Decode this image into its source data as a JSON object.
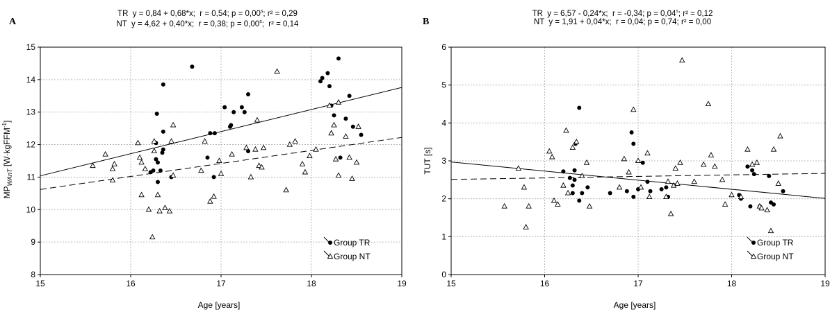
{
  "chart_data": [
    {
      "type": "scatter",
      "panel_letter": "A",
      "annotation_tr": "TR  y = 0,84 + 0,68*x;  r = 0,54; p = 0,00",
      "annotation_tr_sup": "s",
      "annotation_tr_tail": "; r² = 0,29",
      "annotation_nt": "NT  y = 4,62 + 0,40*x;  r = 0,38; p = 0,00",
      "annotation_nt_sup": "s",
      "annotation_nt_tail": ";  r² = 0,14",
      "ylabel": "MP",
      "ylabel_sub": "WAnT",
      "ylabel_tail": " [W·kgFFM",
      "ylabel_sup": "-1",
      "ylabel_close": "]",
      "xlabel": "Age [years]",
      "xlim": [
        15,
        19
      ],
      "ylim": [
        8,
        15
      ],
      "xticks": [
        15,
        16,
        17,
        18,
        19
      ],
      "yticks": [
        8,
        9,
        10,
        11,
        12,
        13,
        14,
        15
      ],
      "grid": true,
      "legend_position": "bottom-right",
      "series": [
        {
          "name": "Group TR",
          "marker": "filled-circle",
          "line_style": "solid",
          "fit": {
            "intercept": 0.84,
            "slope": 0.68
          },
          "points": [
            [
              16.22,
              11.15
            ],
            [
              16.25,
              11.2
            ],
            [
              16.28,
              12.05
            ],
            [
              16.28,
              11.55
            ],
            [
              16.29,
              12.95
            ],
            [
              16.3,
              11.45
            ],
            [
              16.3,
              10.85
            ],
            [
              16.33,
              11.2
            ],
            [
              16.35,
              11.75
            ],
            [
              16.36,
              11.85
            ],
            [
              16.36,
              12.4
            ],
            [
              16.36,
              13.85
            ],
            [
              16.45,
              11.0
            ],
            [
              16.68,
              14.4
            ],
            [
              16.85,
              11.6
            ],
            [
              16.88,
              12.35
            ],
            [
              16.92,
              11.0
            ],
            [
              16.93,
              12.35
            ],
            [
              17.04,
              13.15
            ],
            [
              17.1,
              12.55
            ],
            [
              17.11,
              12.6
            ],
            [
              17.14,
              13.0
            ],
            [
              17.23,
              13.15
            ],
            [
              17.26,
              13.0
            ],
            [
              17.3,
              13.55
            ],
            [
              17.3,
              11.8
            ],
            [
              18.1,
              13.95
            ],
            [
              18.12,
              14.05
            ],
            [
              18.18,
              14.2
            ],
            [
              18.2,
              13.8
            ],
            [
              18.22,
              13.2
            ],
            [
              18.25,
              12.9
            ],
            [
              18.3,
              14.65
            ],
            [
              18.32,
              11.6
            ],
            [
              18.38,
              12.8
            ],
            [
              18.42,
              13.5
            ],
            [
              18.46,
              12.55
            ],
            [
              18.55,
              12.3
            ]
          ]
        },
        {
          "name": "Group NT",
          "marker": "open-triangle",
          "line_style": "dashed",
          "fit": {
            "intercept": 4.62,
            "slope": 0.4
          },
          "points": [
            [
              15.58,
              11.35
            ],
            [
              15.72,
              11.7
            ],
            [
              15.8,
              11.25
            ],
            [
              15.82,
              11.4
            ],
            [
              15.8,
              10.9
            ],
            [
              16.08,
              12.05
            ],
            [
              16.1,
              11.6
            ],
            [
              16.12,
              11.45
            ],
            [
              16.16,
              11.25
            ],
            [
              16.12,
              10.45
            ],
            [
              16.2,
              10.0
            ],
            [
              16.24,
              9.15
            ],
            [
              16.26,
              12.1
            ],
            [
              16.26,
              11.8
            ],
            [
              16.3,
              10.45
            ],
            [
              16.32,
              9.95
            ],
            [
              16.38,
              10.05
            ],
            [
              16.43,
              9.95
            ],
            [
              16.47,
              11.05
            ],
            [
              16.47,
              12.6
            ],
            [
              16.45,
              12.1
            ],
            [
              16.78,
              11.2
            ],
            [
              16.82,
              12.1
            ],
            [
              16.88,
              10.25
            ],
            [
              16.92,
              10.4
            ],
            [
              16.98,
              11.5
            ],
            [
              17.0,
              11.1
            ],
            [
              17.12,
              11.7
            ],
            [
              17.28,
              11.9
            ],
            [
              17.33,
              11.0
            ],
            [
              17.38,
              11.85
            ],
            [
              17.4,
              12.75
            ],
            [
              17.42,
              11.35
            ],
            [
              17.45,
              11.3
            ],
            [
              17.47,
              11.9
            ],
            [
              17.62,
              14.25
            ],
            [
              17.72,
              10.6
            ],
            [
              17.76,
              12.0
            ],
            [
              17.82,
              12.1
            ],
            [
              17.9,
              11.4
            ],
            [
              17.93,
              11.15
            ],
            [
              17.98,
              11.65
            ],
            [
              18.05,
              11.85
            ],
            [
              18.2,
              13.2
            ],
            [
              18.22,
              12.35
            ],
            [
              18.25,
              12.6
            ],
            [
              18.27,
              11.55
            ],
            [
              18.3,
              13.3
            ],
            [
              18.3,
              11.05
            ],
            [
              18.38,
              12.25
            ],
            [
              18.42,
              11.6
            ],
            [
              18.45,
              10.95
            ],
            [
              18.5,
              11.45
            ],
            [
              18.52,
              12.55
            ]
          ]
        }
      ]
    },
    {
      "type": "scatter",
      "panel_letter": "B",
      "annotation_tr": "TR  y = 6,57 - 0,24*x;  r = -0,34; p = 0,04",
      "annotation_tr_sup": "s",
      "annotation_tr_tail": "; r² = 0,12",
      "annotation_nt": "NT  y = 1,91 + 0,04*x;  r = 0,04; p = 0,74; r² = 0,00",
      "annotation_nt_sup": "",
      "annotation_nt_tail": "",
      "ylabel": "TUT [s]",
      "xlabel": "Age [years]",
      "xlim": [
        15,
        19
      ],
      "ylim": [
        0,
        6
      ],
      "xticks": [
        15,
        16,
        17,
        18,
        19
      ],
      "yticks": [
        0,
        1,
        2,
        3,
        4,
        5,
        6
      ],
      "grid": true,
      "legend_position": "bottom-right",
      "series": [
        {
          "name": "Group TR",
          "marker": "filled-circle",
          "line_style": "solid",
          "fit": {
            "intercept": 6.57,
            "slope": -0.24
          },
          "points": [
            [
              16.2,
              2.72
            ],
            [
              16.27,
              2.55
            ],
            [
              16.3,
              2.35
            ],
            [
              16.3,
              2.15
            ],
            [
              16.32,
              2.5
            ],
            [
              16.32,
              2.75
            ],
            [
              16.33,
              3.45
            ],
            [
              16.37,
              4.4
            ],
            [
              16.37,
              1.95
            ],
            [
              16.4,
              2.15
            ],
            [
              16.46,
              2.3
            ],
            [
              16.7,
              2.15
            ],
            [
              16.88,
              2.2
            ],
            [
              16.93,
              3.75
            ],
            [
              16.95,
              3.45
            ],
            [
              16.95,
              2.05
            ],
            [
              17.0,
              2.25
            ],
            [
              17.05,
              2.95
            ],
            [
              17.1,
              2.45
            ],
            [
              17.13,
              2.2
            ],
            [
              17.25,
              2.25
            ],
            [
              17.3,
              2.3
            ],
            [
              17.32,
              2.05
            ],
            [
              18.08,
              2.1
            ],
            [
              18.1,
              2.0
            ],
            [
              18.17,
              2.85
            ],
            [
              18.2,
              1.8
            ],
            [
              18.22,
              2.75
            ],
            [
              18.24,
              2.65
            ],
            [
              18.3,
              1.8
            ],
            [
              18.4,
              2.6
            ],
            [
              18.42,
              1.9
            ],
            [
              18.45,
              1.85
            ],
            [
              18.55,
              2.2
            ]
          ]
        },
        {
          "name": "Group NT",
          "marker": "open-triangle",
          "line_style": "dashed",
          "fit": {
            "intercept": 1.91,
            "slope": 0.04
          },
          "points": [
            [
              15.57,
              1.8
            ],
            [
              15.72,
              2.8
            ],
            [
              15.78,
              2.3
            ],
            [
              15.8,
              1.25
            ],
            [
              15.83,
              1.8
            ],
            [
              16.05,
              3.25
            ],
            [
              16.08,
              3.1
            ],
            [
              16.1,
              1.95
            ],
            [
              16.14,
              1.85
            ],
            [
              16.2,
              2.35
            ],
            [
              16.23,
              3.8
            ],
            [
              16.25,
              2.15
            ],
            [
              16.3,
              3.35
            ],
            [
              16.34,
              3.5
            ],
            [
              16.4,
              2.6
            ],
            [
              16.45,
              2.95
            ],
            [
              16.48,
              1.8
            ],
            [
              16.8,
              2.3
            ],
            [
              16.85,
              3.05
            ],
            [
              16.9,
              2.7
            ],
            [
              16.95,
              4.35
            ],
            [
              17.0,
              3.0
            ],
            [
              17.03,
              2.3
            ],
            [
              17.1,
              3.2
            ],
            [
              17.12,
              2.05
            ],
            [
              17.3,
              2.05
            ],
            [
              17.32,
              2.45
            ],
            [
              17.35,
              1.6
            ],
            [
              17.38,
              2.35
            ],
            [
              17.4,
              2.8
            ],
            [
              17.42,
              2.4
            ],
            [
              17.45,
              2.95
            ],
            [
              17.47,
              5.65
            ],
            [
              17.6,
              2.45
            ],
            [
              17.7,
              2.9
            ],
            [
              17.75,
              4.5
            ],
            [
              17.78,
              3.15
            ],
            [
              17.82,
              2.85
            ],
            [
              17.9,
              2.5
            ],
            [
              17.93,
              1.85
            ],
            [
              18.0,
              2.1
            ],
            [
              18.1,
              2.05
            ],
            [
              18.17,
              3.3
            ],
            [
              18.22,
              2.9
            ],
            [
              18.27,
              2.95
            ],
            [
              18.3,
              1.8
            ],
            [
              18.32,
              1.75
            ],
            [
              18.38,
              1.7
            ],
            [
              18.42,
              1.15
            ],
            [
              18.45,
              3.3
            ],
            [
              18.5,
              2.4
            ],
            [
              18.52,
              3.65
            ]
          ]
        }
      ]
    }
  ]
}
